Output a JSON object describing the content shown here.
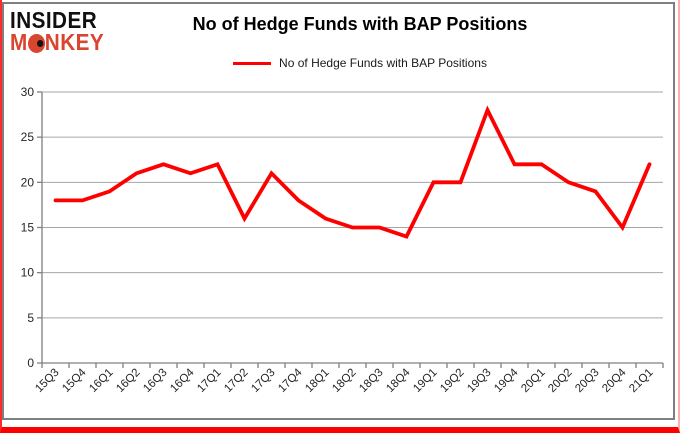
{
  "logo": {
    "line1": "INSIDER",
    "line2": "MONKEY",
    "line2_pre": "M",
    "line2_post": "NKEY"
  },
  "header": {
    "title": "No of Hedge Funds with BAP Positions"
  },
  "legend": {
    "label": "No of Hedge Funds with BAP Positions"
  },
  "colors": {
    "series": "#ff0000",
    "logo_black": "#101010",
    "logo_red": "#d9452f",
    "gridline": "#a6a6a6",
    "axis": "#808080",
    "tick_label": "#262626",
    "page_border_red": "#ff0000",
    "frame_gray": "#7f7f7f"
  },
  "chart_data": {
    "type": "line",
    "title": "No of Hedge Funds with BAP Positions",
    "categories": [
      "15Q3",
      "15Q4",
      "16Q1",
      "16Q2",
      "16Q3",
      "16Q4",
      "17Q1",
      "17Q2",
      "17Q3",
      "17Q4",
      "18Q1",
      "18Q2",
      "18Q3",
      "18Q4",
      "19Q1",
      "19Q2",
      "19Q3",
      "19Q4",
      "20Q1",
      "20Q2",
      "20Q3",
      "20Q4",
      "21Q1"
    ],
    "series": [
      {
        "name": "No of Hedge Funds with BAP Positions",
        "color": "#ff0000",
        "values": [
          18,
          18,
          19,
          21,
          22,
          21,
          22,
          16,
          21,
          18,
          16,
          15,
          15,
          14,
          20,
          20,
          28,
          22,
          22,
          20,
          19,
          15,
          22
        ]
      }
    ],
    "xlabel": "",
    "ylabel": "",
    "ylim": [
      0,
      30
    ],
    "yticks": [
      0,
      5,
      10,
      15,
      20,
      25,
      30
    ],
    "grid": true,
    "legend_position": "top"
  }
}
